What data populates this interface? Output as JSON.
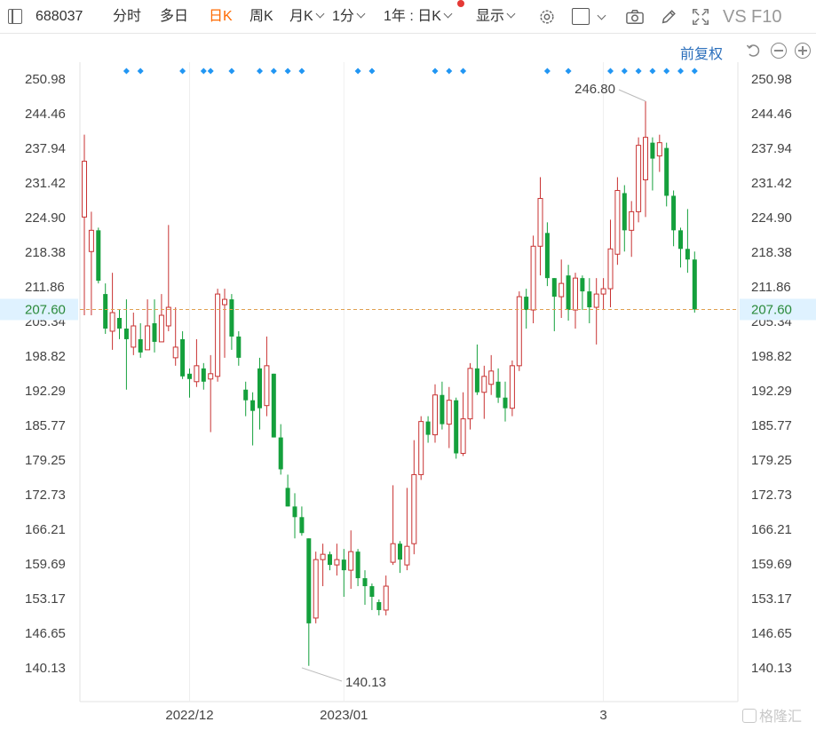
{
  "toolbar": {
    "code": "688037",
    "items": [
      "分时",
      "多日",
      "日K",
      "周K",
      "月K",
      "1分",
      "1年 : 日K",
      "显示"
    ],
    "active": "日K",
    "vs_label": "VS",
    "f10_label": "F10",
    "icons": [
      "sidebar-icon",
      "gear-icon",
      "square-icon",
      "camera-icon",
      "pencil-icon",
      "fullscreen-icon"
    ]
  },
  "restore": {
    "label": "前复权",
    "icons": [
      "undo-icon",
      "zoom-out-icon",
      "zoom-in-icon"
    ]
  },
  "watermark": "格隆汇",
  "colors": {
    "up": "#c83232",
    "down": "#14a03c",
    "current_price_line": "#e0a050",
    "current_price_bg": "#dff2ff",
    "marker": "#2196f3"
  },
  "chart_data": {
    "type": "candlestick",
    "y_ticks": [
      "250.98",
      "244.46",
      "237.94",
      "231.42",
      "224.90",
      "218.38",
      "211.86",
      "205.34",
      "198.82",
      "192.29",
      "185.77",
      "179.25",
      "172.73",
      "166.21",
      "159.69",
      "153.17",
      "146.65",
      "140.13"
    ],
    "x_ticks": [
      {
        "label": "2022/12",
        "index": 15
      },
      {
        "label": "2023/01",
        "index": 37
      },
      {
        "label": "3",
        "index": 74
      }
    ],
    "current_price": "207.60",
    "high_annotation": {
      "label": "246.80",
      "index": 80
    },
    "low_annotation": {
      "label": "140.13",
      "index": 31
    },
    "marker_indices": [
      6,
      8,
      14,
      17,
      18,
      21,
      25,
      27,
      29,
      31,
      39,
      41,
      50,
      52,
      54,
      66,
      69,
      75,
      77,
      79,
      81,
      83,
      85,
      87
    ],
    "candles": [
      [
        225,
        235.5,
        240.5,
        206.5
      ],
      [
        218.5,
        222.5,
        226,
        206.5
      ],
      [
        222.5,
        213,
        223,
        212.5
      ],
      [
        210.5,
        204,
        212.5,
        203
      ],
      [
        203.5,
        207,
        214.5,
        200
      ],
      [
        206,
        204,
        207.5,
        202
      ],
      [
        204,
        202,
        209.5,
        192.5
      ],
      [
        200.5,
        204.5,
        207,
        199
      ],
      [
        202,
        199.5,
        205,
        198.5
      ],
      [
        200,
        204.5,
        209.5,
        200
      ],
      [
        205,
        201.5,
        209.5,
        199.5
      ],
      [
        201.5,
        206.5,
        210.5,
        201.5
      ],
      [
        204.5,
        208,
        223.5,
        203.5
      ],
      [
        198.5,
        200.5,
        208,
        197
      ],
      [
        202,
        195,
        203.5,
        194.5
      ],
      [
        195.5,
        194.5,
        196.5,
        191
      ],
      [
        194,
        197,
        202,
        193
      ],
      [
        196.5,
        194,
        197.5,
        192.5
      ],
      [
        194.5,
        195.5,
        199,
        184.5
      ],
      [
        195,
        210.5,
        211.5,
        194
      ],
      [
        208.5,
        209.5,
        211.5,
        198.5
      ],
      [
        209.5,
        202.5,
        210.5,
        200
      ],
      [
        202.5,
        198.5,
        203.5,
        197
      ],
      [
        192.5,
        190.5,
        194,
        187.5
      ],
      [
        190.5,
        188.5,
        192,
        182
      ],
      [
        196.5,
        189,
        198.5,
        185
      ],
      [
        189.5,
        197,
        202.5,
        187.5
      ],
      [
        195.5,
        183.5,
        195.5,
        183.5
      ],
      [
        183.5,
        177.5,
        186,
        176.5
      ],
      [
        174,
        170.5,
        176.5,
        170.5
      ],
      [
        170.5,
        168.5,
        173,
        164.5
      ],
      [
        168.5,
        165.5,
        170.5,
        165
      ],
      [
        164.5,
        148.5,
        164.5,
        140.5
      ],
      [
        149.5,
        160.5,
        162,
        148.5
      ],
      [
        160.5,
        161.5,
        163.5,
        155.5
      ],
      [
        161.5,
        159.5,
        162,
        158.5
      ],
      [
        159.5,
        160.5,
        163.5,
        157.5
      ],
      [
        160.5,
        158.5,
        162.5,
        153.5
      ],
      [
        158.5,
        162,
        166,
        155
      ],
      [
        162,
        157,
        162.5,
        155.5
      ],
      [
        157,
        155.5,
        158.5,
        152
      ],
      [
        155.5,
        153.5,
        156,
        151
      ],
      [
        152.5,
        151,
        153,
        150
      ],
      [
        151,
        155.5,
        157.5,
        150
      ],
      [
        160,
        163.5,
        174.5,
        159.5
      ],
      [
        163.5,
        160.5,
        164,
        158
      ],
      [
        159.5,
        163,
        174,
        158.5
      ],
      [
        163.5,
        176.5,
        183,
        161.5
      ],
      [
        176.5,
        186.5,
        187.5,
        175.5
      ],
      [
        186.5,
        184,
        187.5,
        182.5
      ],
      [
        184,
        191.5,
        193.5,
        182.5
      ],
      [
        191.5,
        186,
        194,
        185
      ],
      [
        186,
        190.5,
        193,
        181.5
      ],
      [
        190.5,
        180.5,
        191,
        179.5
      ],
      [
        180.5,
        187,
        192,
        180
      ],
      [
        187,
        196.5,
        197.5,
        185
      ],
      [
        196.5,
        192,
        201,
        191.5
      ],
      [
        192,
        195,
        197,
        187
      ],
      [
        193.5,
        196,
        199,
        191.5
      ],
      [
        194,
        191,
        196.5,
        190
      ],
      [
        191,
        189,
        194,
        186.5
      ],
      [
        189,
        197,
        198,
        187.5
      ],
      [
        197,
        210,
        211,
        196
      ],
      [
        210,
        207.5,
        211.5,
        204
      ],
      [
        207.5,
        219.5,
        221.5,
        205
      ],
      [
        219.5,
        228.5,
        232.5,
        214
      ],
      [
        222,
        213.5,
        224,
        212
      ],
      [
        213.5,
        210,
        213.5,
        203.5
      ],
      [
        210,
        212.5,
        217,
        206
      ],
      [
        214,
        207.5,
        216,
        205.5
      ],
      [
        207.5,
        213.5,
        214.5,
        204
      ],
      [
        213.5,
        211,
        214,
        207.5
      ],
      [
        211,
        208,
        213.5,
        205
      ],
      [
        208,
        210.5,
        213.5,
        201
      ],
      [
        210.5,
        211.5,
        213.5,
        207.5
      ],
      [
        211.5,
        219,
        224.5,
        208
      ],
      [
        218,
        230,
        232.5,
        216
      ],
      [
        229.5,
        222.5,
        231,
        218.5
      ],
      [
        222.5,
        226,
        228,
        217.5
      ],
      [
        226,
        238.5,
        240,
        224
      ],
      [
        232,
        240,
        246.8,
        225
      ],
      [
        239,
        236,
        240,
        230
      ],
      [
        236.5,
        239,
        240.5,
        233.5
      ],
      [
        238,
        229,
        239,
        227
      ],
      [
        229,
        222.5,
        230,
        219.5
      ],
      [
        222.5,
        219,
        223,
        215.5
      ],
      [
        219,
        217,
        226.5,
        214.5
      ],
      [
        217,
        207.6,
        218.5,
        207
      ]
    ]
  }
}
